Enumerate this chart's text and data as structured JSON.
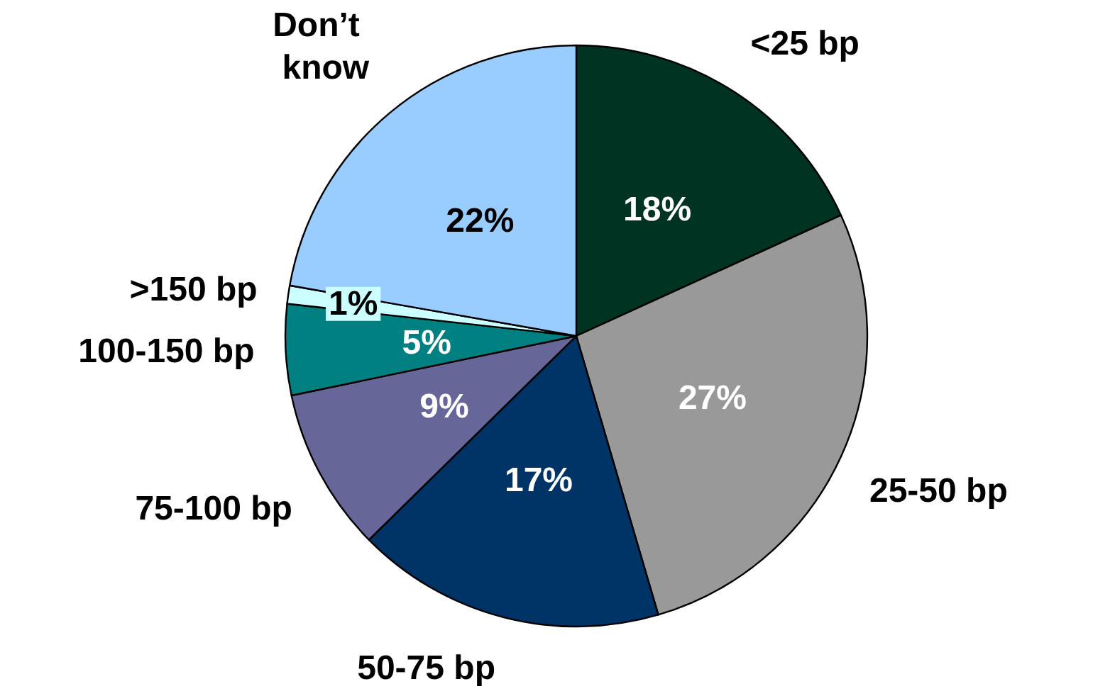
{
  "chart_data": {
    "type": "pie",
    "categories": [
      "<25 bp",
      "25-50 bp",
      "50-75 bp",
      "75-100 bp",
      "100-150 bp",
      ">150 bp",
      "Don’t know"
    ],
    "values": [
      18,
      27,
      17,
      9,
      5,
      1,
      22
    ],
    "colors": [
      "#003322",
      "#999999",
      "#003366",
      "#666699",
      "#008080",
      "#ccffff",
      "#99ccff"
    ],
    "value_labels": [
      "18%",
      "27%",
      "17%",
      "9%",
      "5%",
      "1%",
      "22%"
    ]
  }
}
